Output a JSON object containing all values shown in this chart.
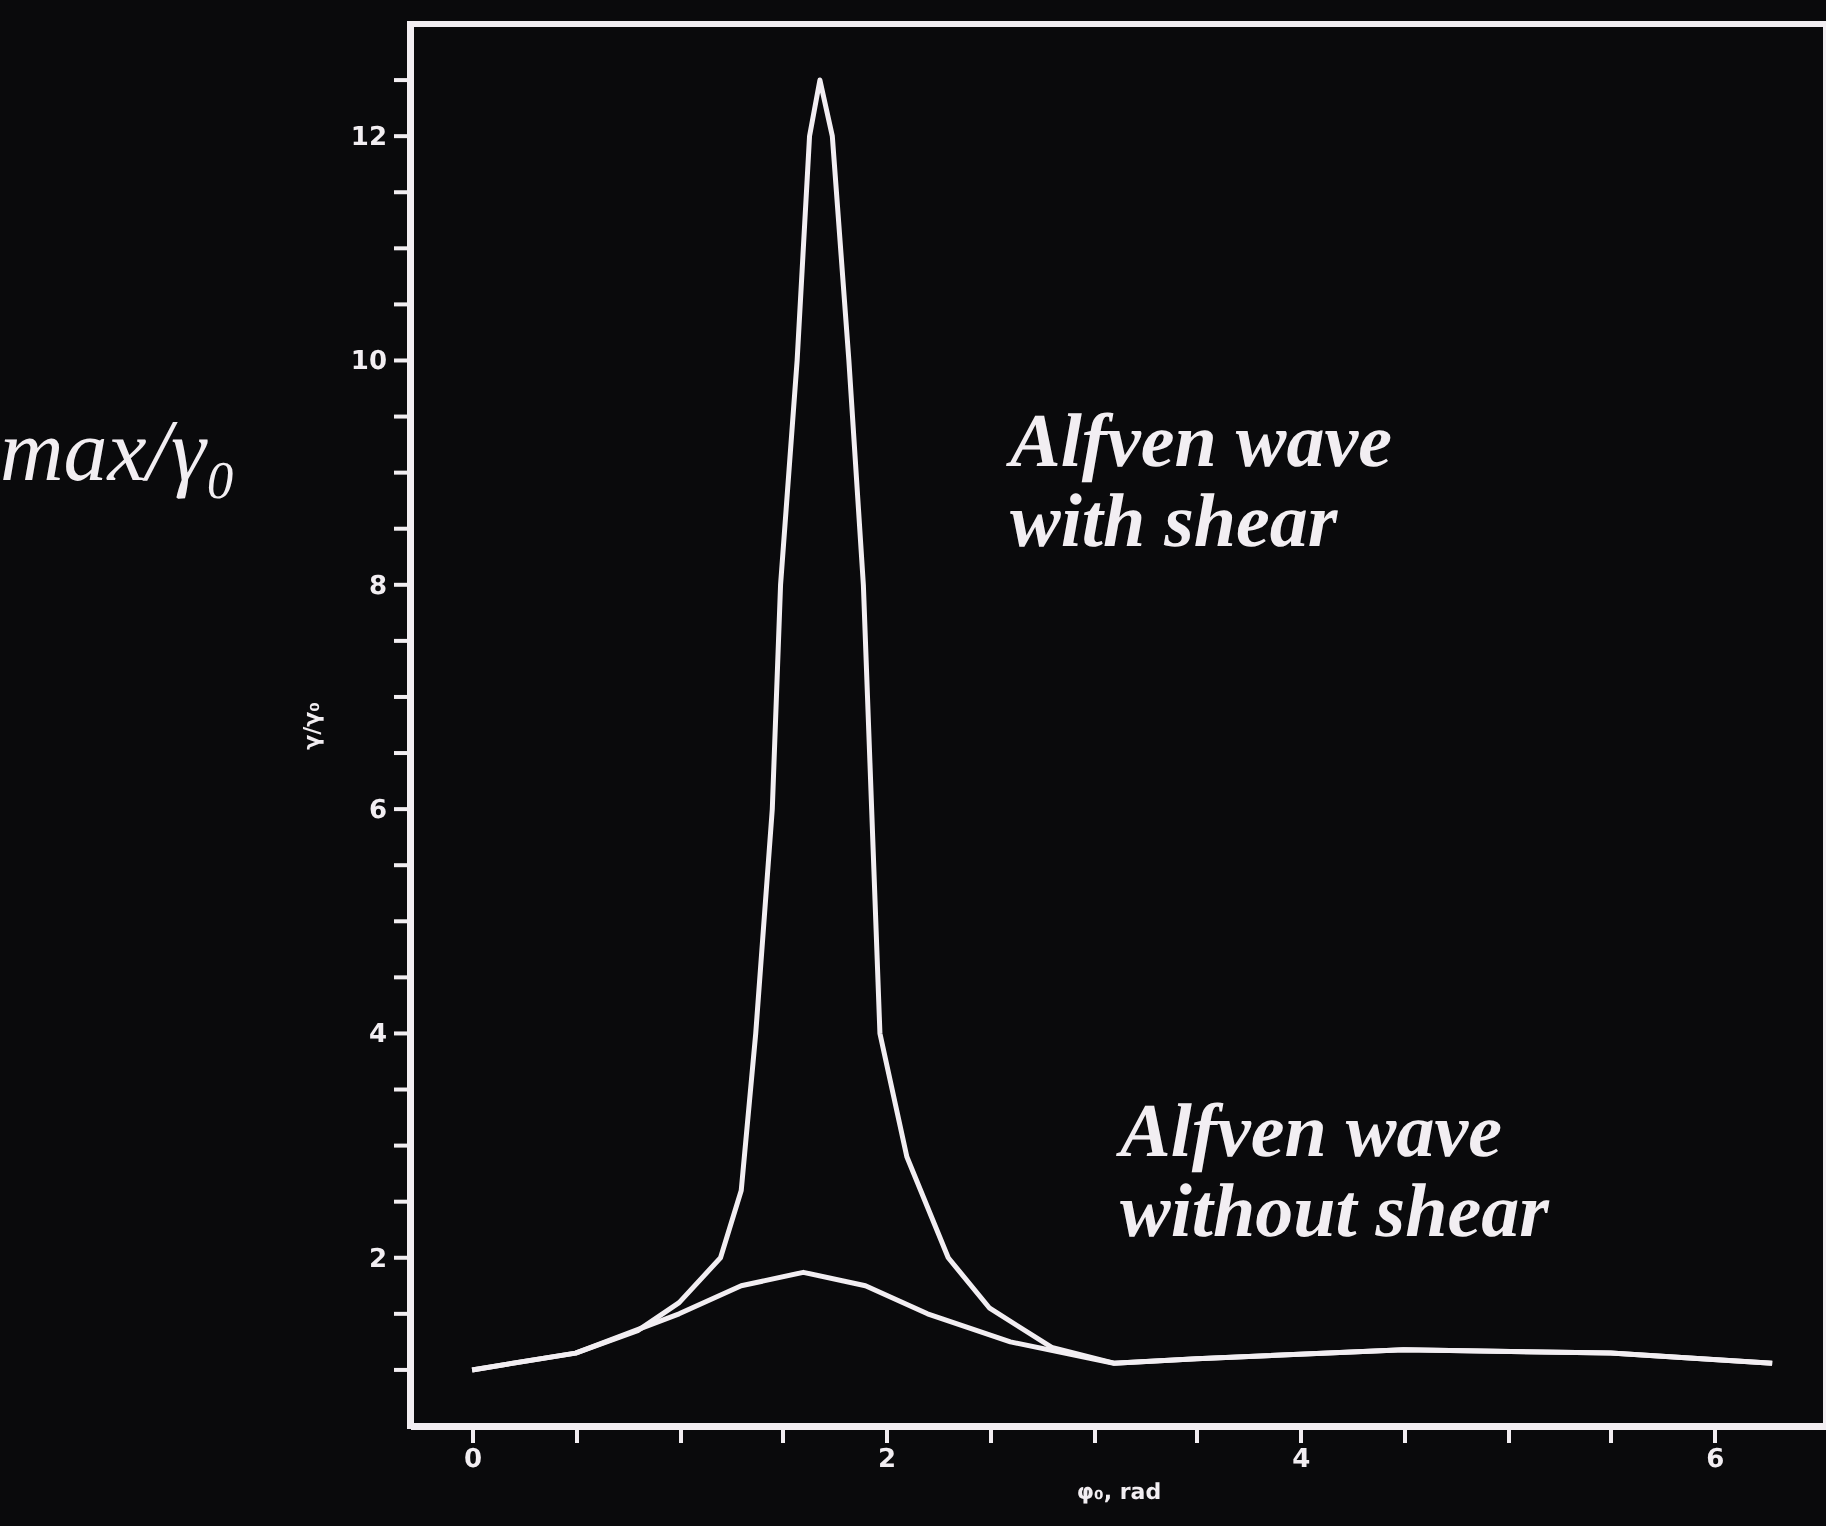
{
  "chart_data": {
    "type": "line",
    "xlabel": "φ₀, rad",
    "ylabel": "γ/γ₀",
    "annotations": [
      "max/γ₀"
    ],
    "xlim": [
      -0.3,
      6.54
    ],
    "ylim": [
      0.5,
      13
    ],
    "xticks": [
      0,
      {
        "value": 0.5,
        "label": null
      },
      {
        "value": 1,
        "label": null
      },
      {
        "value": 1.5,
        "label": null
      },
      2,
      {
        "value": 2.5,
        "label": null
      },
      {
        "value": 3,
        "label": null
      },
      {
        "value": 3.5,
        "label": null
      },
      4,
      {
        "value": 4.5,
        "label": null
      },
      {
        "value": 5,
        "label": null
      },
      {
        "value": 5.5,
        "label": null
      },
      6
    ],
    "yticks": [
      {
        "value": 1,
        "label": null
      },
      {
        "value": 1.5,
        "label": null
      },
      2,
      {
        "value": 2.5,
        "label": null
      },
      {
        "value": 3,
        "label": null
      },
      {
        "value": 3.5,
        "label": null
      },
      4,
      {
        "value": 4.5,
        "label": null
      },
      {
        "value": 5,
        "label": null
      },
      {
        "value": 5.5,
        "label": null
      },
      6,
      {
        "value": 6.5,
        "label": null
      },
      {
        "value": 7,
        "label": null
      },
      {
        "value": 7.5,
        "label": null
      },
      8,
      {
        "value": 8.5,
        "label": null
      },
      {
        "value": 9,
        "label": null
      },
      {
        "value": 9.5,
        "label": null
      },
      10,
      {
        "value": 10.5,
        "label": null
      },
      {
        "value": 11,
        "label": null
      },
      {
        "value": 11.5,
        "label": null
      },
      12,
      {
        "value": 12.5,
        "label": null
      }
    ],
    "grid": false,
    "legend": false,
    "marker": "none",
    "line_style": "solid",
    "series": [
      {
        "name": "Alfven wave with shear",
        "color": "#f2eef2",
        "x": [
          0,
          0.5,
          0.8,
          1.0,
          1.2,
          1.3,
          1.37,
          1.45,
          1.49,
          1.57,
          1.63,
          1.68,
          1.74,
          1.82,
          1.89,
          1.93,
          1.97,
          2.1,
          2.3,
          2.5,
          2.8,
          3.1,
          3.5,
          4.5,
          5.5,
          6.28
        ],
        "values": [
          1.0,
          1.15,
          1.35,
          1.6,
          2.0,
          2.6,
          4.0,
          6.0,
          8.0,
          10.0,
          12.0,
          12.5,
          12.0,
          10.0,
          8.0,
          6.0,
          4.0,
          2.9,
          2.0,
          1.55,
          1.2,
          1.06,
          1.1,
          1.18,
          1.15,
          1.06
        ]
      },
      {
        "name": "Alfven wave without shear",
        "color": "#f2eef2",
        "x": [
          0,
          0.5,
          1.0,
          1.3,
          1.6,
          1.9,
          2.2,
          2.6,
          3.1,
          3.5,
          4.5,
          5.5,
          6.28
        ],
        "values": [
          1.0,
          1.15,
          1.5,
          1.75,
          1.87,
          1.75,
          1.5,
          1.25,
          1.06,
          1.1,
          1.18,
          1.15,
          1.06
        ]
      }
    ]
  }
}
